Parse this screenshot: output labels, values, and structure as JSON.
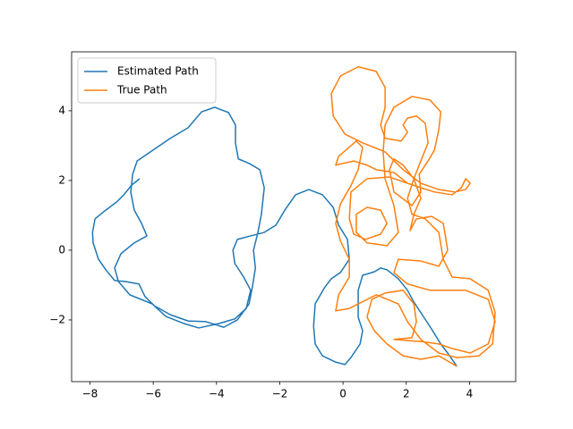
{
  "chart_data": {
    "type": "line",
    "xlim": [
      -8.58,
      5.46
    ],
    "ylim": [
      -3.77,
      5.69
    ],
    "xticks": [
      {
        "value": -8,
        "label": "−8"
      },
      {
        "value": -6,
        "label": "−6"
      },
      {
        "value": -4,
        "label": "−4"
      },
      {
        "value": -2,
        "label": "−2"
      },
      0,
      2,
      4
    ],
    "yticks": [
      {
        "value": -2,
        "label": "−2"
      },
      0,
      2,
      4
    ],
    "legend": "upper left",
    "series": [
      {
        "name": "Estimated Path",
        "color": "#1f77b4",
        "x": [
          -6.43,
          -6.68,
          -6.93,
          -7.16,
          -7.5,
          -7.84,
          -7.92,
          -7.9,
          -7.73,
          -7.5,
          -7.22,
          -6.88,
          -6.45,
          -6.26,
          -5.97,
          -5.46,
          -4.9,
          -4.33,
          -3.77,
          -3.34,
          -2.97,
          -2.86,
          -2.77,
          -2.83,
          -2.69,
          -2.58,
          -2.49,
          -2.63,
          -2.97,
          -3.31,
          -3.4,
          -3.4,
          -3.62,
          -4.05,
          -4.47,
          -4.9,
          -5.46,
          -6.17,
          -6.51,
          -6.65,
          -6.71,
          -6.6,
          -6.37,
          -6.2,
          -6.6,
          -7.02,
          -7.22,
          -7.1,
          -6.74,
          -6.03,
          -5.6,
          -5.04,
          -4.56,
          -3.91,
          -3.42,
          -3.06,
          -2.92,
          -3.14,
          -3.42,
          -3.48,
          -3.34,
          -2.92,
          -2.49,
          -2.12,
          -1.84,
          -1.5,
          -1.08,
          -0.65,
          -0.31,
          -0.14,
          0.14,
          0.2,
          -0.08,
          -0.37,
          -0.59,
          -0.88,
          -0.93,
          -0.88,
          -0.65,
          -0.23,
          0.06,
          0.25,
          0.54,
          0.62,
          0.48,
          0.48,
          0.62,
          0.99,
          1.19,
          1.39,
          1.75,
          2.04,
          2.24,
          2.46,
          2.8,
          3.09,
          3.31,
          3.6
        ],
        "values": [
          2.05,
          1.87,
          1.59,
          1.38,
          1.15,
          0.9,
          0.51,
          0.21,
          -0.26,
          -0.56,
          -0.87,
          -0.9,
          -0.97,
          -1.33,
          -1.59,
          -1.85,
          -2.03,
          -2.05,
          -2.21,
          -2.0,
          -1.54,
          -1.03,
          -0.51,
          0,
          0.51,
          1.03,
          1.79,
          2.31,
          2.49,
          2.62,
          3.08,
          3.59,
          3.95,
          4.1,
          3.97,
          3.51,
          3.21,
          2.77,
          2.56,
          2.18,
          1.67,
          1.15,
          0.77,
          0.41,
          0.21,
          -0.1,
          -0.51,
          -0.9,
          -1.28,
          -1.54,
          -1.9,
          -2.1,
          -2.23,
          -2.1,
          -1.97,
          -1.67,
          -1.15,
          -0.77,
          -0.38,
          0,
          0.31,
          0.41,
          0.51,
          0.72,
          1.15,
          1.59,
          1.74,
          1.59,
          1.23,
          0.72,
          0.31,
          -0.26,
          -0.64,
          -0.82,
          -1.08,
          -1.54,
          -2.18,
          -2.69,
          -3.03,
          -3.21,
          -3.28,
          -3.08,
          -2.69,
          -2.31,
          -1.92,
          -1.15,
          -0.72,
          -0.62,
          -0.51,
          -0.56,
          -0.82,
          -1.15,
          -1.49,
          -1.79,
          -2.26,
          -2.69,
          -2.95,
          -3.33
        ]
      },
      {
        "name": "True Path",
        "color": "#ff7f0e",
        "x": [
          3.6,
          3.03,
          2.46,
          1.9,
          1.39,
          0.99,
          0.76,
          0.91,
          1.33,
          1.9,
          2.24,
          2.32,
          2.18,
          1.61,
          2.46,
          3.03,
          3.45,
          4.02,
          4.59,
          4.81,
          4.59,
          3.88,
          2.75,
          2.04,
          1.61,
          1.75,
          2.46,
          3.03,
          3.31,
          3.17,
          2.8,
          2.32,
          2.12,
          2.24,
          2.46,
          2.24,
          1.9,
          1.61,
          1.47,
          1.61,
          2.18,
          2.46,
          2.41,
          2.69,
          2.89,
          3.03,
          3.09,
          2.75,
          2.18,
          1.61,
          1.33,
          1.27,
          1.33,
          1.61,
          1.75,
          1.39,
          0.76,
          0.42,
          0.42,
          0.76,
          1.19,
          1.39,
          1.19,
          0.71,
          0.34,
          0.2,
          0.25,
          0.76,
          1.47,
          2.04,
          2.46,
          2.89,
          3.45,
          3.74,
          3.88,
          4.02,
          3.88,
          3.54,
          3.03,
          2.46,
          1.9,
          1.33,
          0.62,
          0.06,
          -0.31,
          -0.37,
          -0.08,
          0.48,
          1.05,
          1.33,
          1.33,
          1.19,
          1.33,
          1.84,
          2.04,
          1.9,
          2.04,
          2.32,
          2.6,
          2.69,
          2.46,
          2.24,
          2.04,
          2.18,
          2.6,
          3.03,
          3.17,
          3.45,
          4.02,
          4.59,
          4.81,
          4.73,
          4.3,
          3.6,
          3.03,
          2.46,
          2.04,
          1.75,
          1.05,
          0.48,
          0.2,
          -0.23,
          -0.14,
          0.2,
          0.2,
          -0.08,
          -0.23,
          -0.08,
          0.25,
          0.48,
          0.62,
          0.42,
          -0.14,
          -0.23,
          0.34,
          0.76,
          1.05,
          1.61,
          2.04
        ],
        "values": [
          -3.33,
          -3.03,
          -3.13,
          -3.03,
          -2.69,
          -2.31,
          -1.92,
          -1.41,
          -1.23,
          -1.15,
          -1.54,
          -2.05,
          -2.51,
          -2.56,
          -2.62,
          -2.69,
          -2.82,
          -2.95,
          -2.69,
          -2.05,
          -1.41,
          -1.15,
          -1.15,
          -0.97,
          -0.64,
          -0.26,
          -0.31,
          -0.46,
          0,
          0.77,
          0.97,
          0.9,
          0.56,
          1.03,
          1.49,
          2.05,
          2.44,
          2.62,
          2.31,
          1.67,
          1.28,
          1.67,
          2.18,
          2.56,
          2.87,
          3.46,
          3.97,
          4.31,
          4.41,
          4.1,
          3.59,
          2.82,
          2.05,
          1.28,
          0.51,
          0.13,
          0.21,
          0.51,
          1.03,
          1.23,
          1.15,
          0.77,
          0.46,
          0.31,
          0.46,
          0.9,
          1.67,
          2.05,
          2.1,
          1.92,
          1.79,
          1.67,
          1.59,
          1.79,
          2.05,
          1.92,
          1.74,
          1.67,
          1.74,
          1.92,
          2.31,
          2.82,
          3.08,
          3.33,
          3.85,
          4.49,
          5.0,
          5.26,
          5.13,
          4.67,
          4.1,
          3.59,
          3.21,
          3.13,
          3.38,
          3.59,
          3.79,
          3.85,
          3.64,
          3.08,
          2.56,
          2.05,
          1.49,
          1.03,
          0.9,
          0.51,
          -0.26,
          -0.77,
          -0.82,
          -1.15,
          -1.79,
          -2.69,
          -3.03,
          -3.08,
          -2.95,
          -2.56,
          -2.05,
          -1.54,
          -1.28,
          -1.54,
          -1.67,
          -1.74,
          -1.28,
          -0.77,
          -0.26,
          0.26,
          0.77,
          1.33,
          1.85,
          2.31,
          2.95,
          3.13,
          2.69,
          2.44,
          2.56,
          2.44,
          2.31,
          2.23,
          1.92
        ]
      }
    ]
  }
}
